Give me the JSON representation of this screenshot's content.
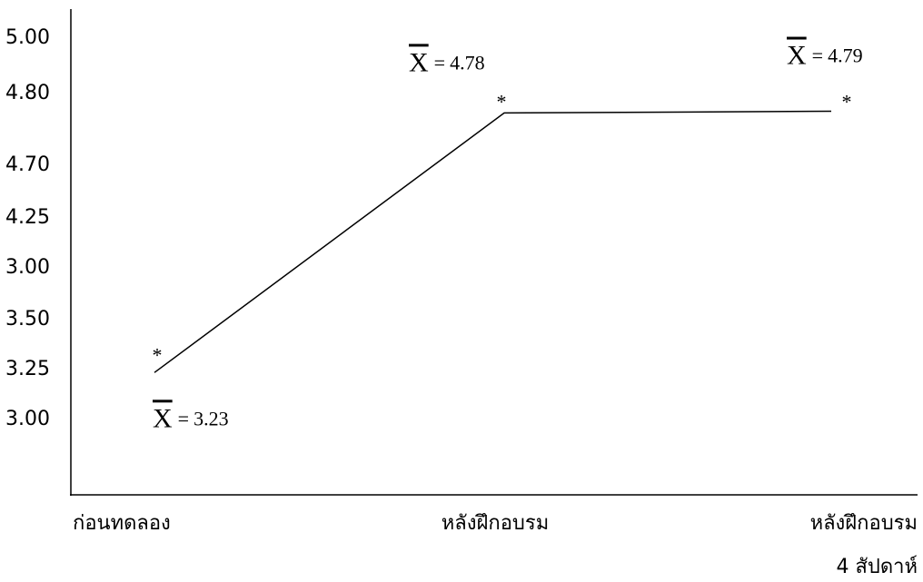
{
  "chart_data": {
    "type": "line",
    "categories": [
      [
        "ก่อนทดลอง"
      ],
      [
        "หลังฝึกอบรม"
      ],
      [
        "หลังฝึกอบรม",
        "4 สัปดาห์"
      ]
    ],
    "values": [
      3.23,
      4.78,
      4.79
    ],
    "color": "#000000",
    "marker": "*",
    "mean_symbol": "X",
    "equals_sign": "=",
    "ylim": [
      2.5,
      5.4
    ],
    "y_labels": [
      "5.00",
      "4.80",
      "4.70",
      "4.25",
      "3.00",
      "3.50",
      "3.25",
      "3.00"
    ]
  }
}
